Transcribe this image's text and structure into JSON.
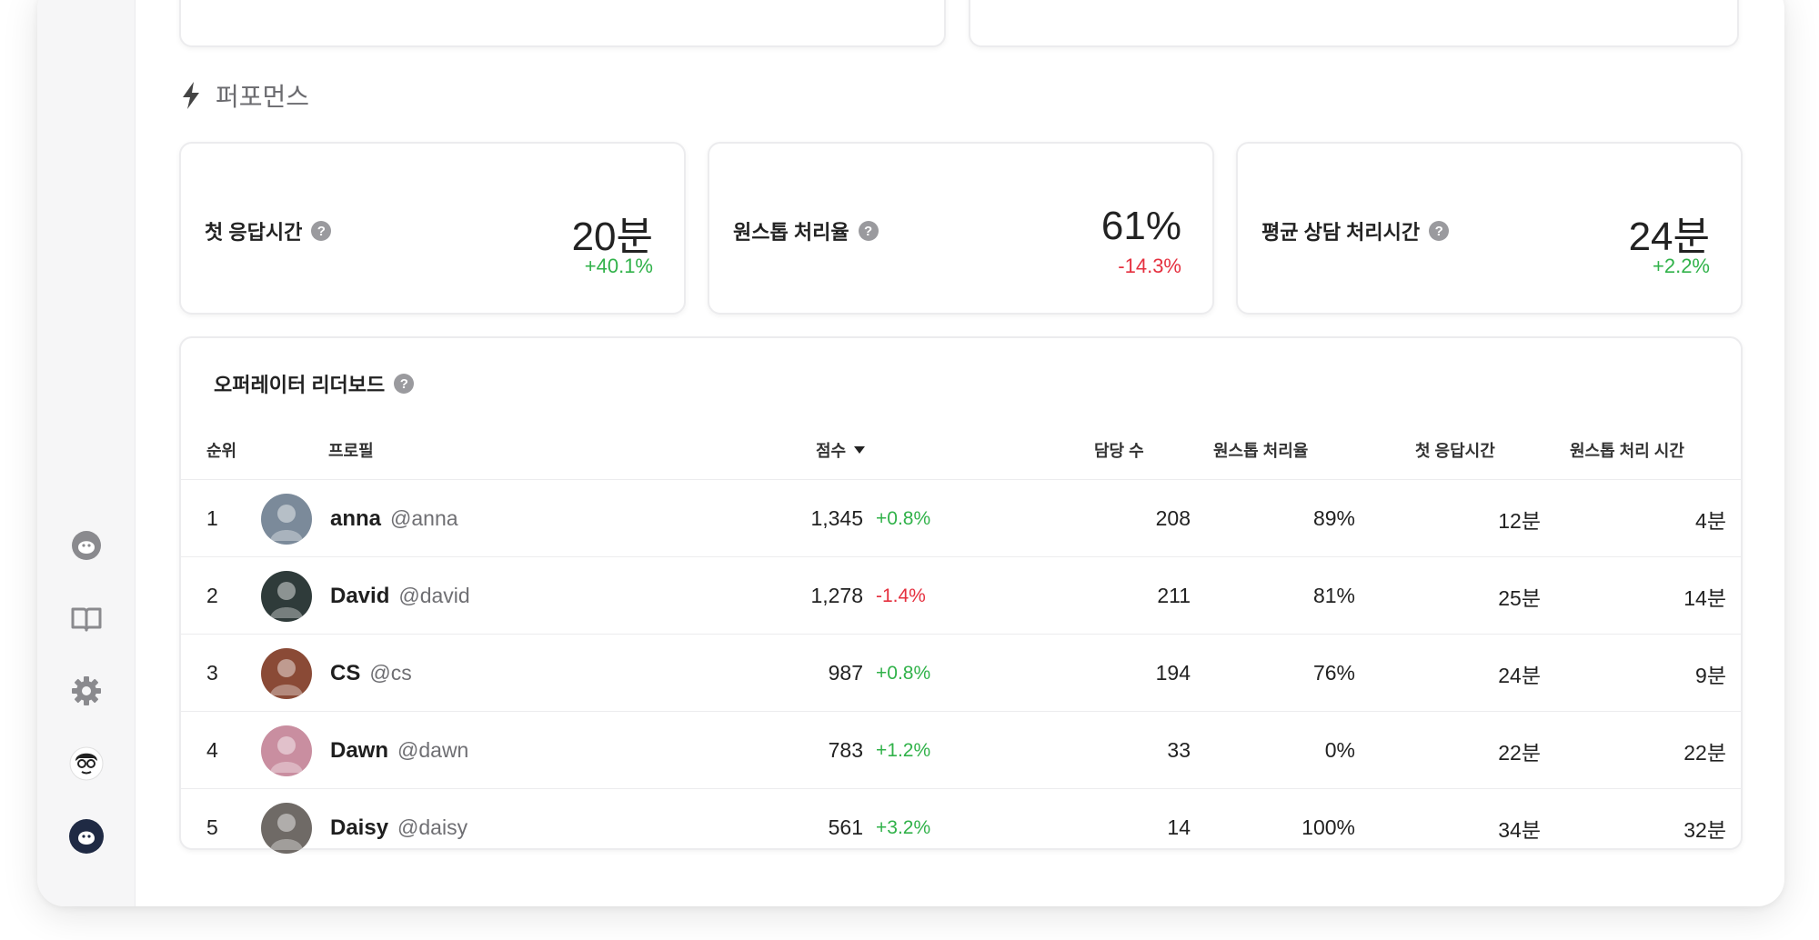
{
  "section": {
    "title": "퍼포먼스"
  },
  "metrics": [
    {
      "label": "첫 응답시간",
      "value": "20분",
      "change": "+40.1%",
      "trend": "pos"
    },
    {
      "label": "원스톱 처리율",
      "value": "61%",
      "change": "-14.3%",
      "trend": "neg"
    },
    {
      "label": "평균 상담 처리시간",
      "value": "24분",
      "change": "+2.2%",
      "trend": "pos"
    }
  ],
  "leaderboard": {
    "title": "오퍼레이터 리더보드",
    "headers": {
      "rank": "순위",
      "profile": "프로필",
      "score": "점수",
      "assigned": "담당 수",
      "onestop_rate": "원스톱 처리율",
      "first_response": "첫 응답시간",
      "onestop_time": "원스톱 처리 시간"
    },
    "rows": [
      {
        "rank": "1",
        "name": "anna",
        "handle": "@anna",
        "score": "1,345",
        "change": "+0.8%",
        "trend": "pos",
        "assigned": "208",
        "onestop_rate": "89%",
        "first_response": "12분",
        "onestop_time": "4분",
        "avatar_color": "#7b8a9a"
      },
      {
        "rank": "2",
        "name": "David",
        "handle": "@david",
        "score": "1,278",
        "change": "-1.4%",
        "trend": "neg",
        "assigned": "211",
        "onestop_rate": "81%",
        "first_response": "25분",
        "onestop_time": "14분",
        "avatar_color": "#2f3b3a"
      },
      {
        "rank": "3",
        "name": "CS",
        "handle": "@cs",
        "score": "987",
        "change": "+0.8%",
        "trend": "pos",
        "assigned": "194",
        "onestop_rate": "76%",
        "first_response": "24분",
        "onestop_time": "9분",
        "avatar_color": "#8a4a36"
      },
      {
        "rank": "4",
        "name": "Dawn",
        "handle": "@dawn",
        "score": "783",
        "change": "+1.2%",
        "trend": "pos",
        "assigned": "33",
        "onestop_rate": "0%",
        "first_response": "22분",
        "onestop_time": "22분",
        "avatar_color": "#c98ea0"
      },
      {
        "rank": "5",
        "name": "Daisy",
        "handle": "@daisy",
        "score": "561",
        "change": "+3.2%",
        "trend": "pos",
        "assigned": "14",
        "onestop_rate": "100%",
        "first_response": "34분",
        "onestop_time": "32분",
        "avatar_color": "#6f6a66"
      }
    ]
  },
  "sidebar": {
    "icons": [
      "channel-talk-icon",
      "book-icon",
      "gear-icon",
      "user-avatar-icon",
      "channel-avatar-icon"
    ]
  },
  "colors": {
    "positive": "#31b24a",
    "negative": "#e5303f",
    "sidebar_bg": "#f6f6f7"
  }
}
